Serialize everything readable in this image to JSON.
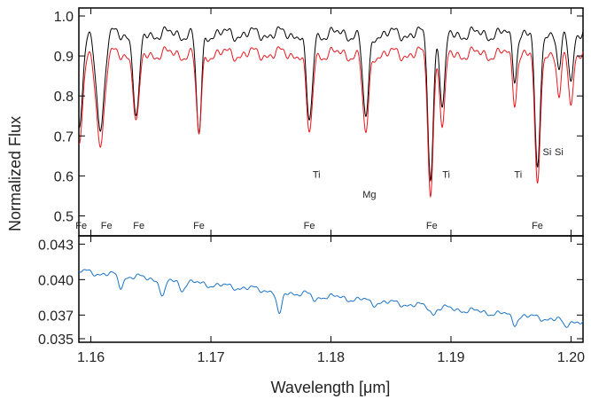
{
  "chart_data": [
    {
      "type": "line",
      "title": "",
      "xlabel": "Wavelength [μm]",
      "ylabel": "Normalized Flux",
      "xlim": [
        1.159,
        1.201
      ],
      "ylim": [
        0.45,
        1.02
      ],
      "x_ticks": [
        1.16,
        1.17,
        1.18,
        1.19,
        1.2
      ],
      "x_tick_labels": [
        "1.16",
        "1.17",
        "1.18",
        "1.19",
        "1.20"
      ],
      "y_ticks": [
        0.5,
        0.6,
        0.7,
        0.8,
        0.9,
        1.0
      ],
      "y_tick_labels": [
        "0.5",
        "0.6",
        "0.7",
        "0.8",
        "0.9",
        "1.0"
      ],
      "grid": false,
      "continuum": {
        "x": [
          1.159,
          1.201
        ],
        "black_level": 0.975,
        "red_level": 0.925,
        "noise": 0.02
      },
      "series": [
        {
          "color": "#000000",
          "lines": [
            {
              "x": 1.159,
              "min": 0.74,
              "w": 0.00045
            },
            {
              "x": 1.1608,
              "min": 0.74,
              "w": 0.00045
            },
            {
              "x": 1.1638,
              "min": 0.76,
              "w": 0.00035
            },
            {
              "x": 1.169,
              "min": 0.72,
              "w": 0.0003
            },
            {
              "x": 1.1782,
              "min": 0.75,
              "w": 0.00035
            },
            {
              "x": 1.1829,
              "min": 0.76,
              "w": 0.00035
            },
            {
              "x": 1.1883,
              "min": 0.61,
              "w": 0.0003
            },
            {
              "x": 1.1893,
              "min": 0.79,
              "w": 0.0003
            },
            {
              "x": 1.1953,
              "min": 0.87,
              "w": 0.00025
            },
            {
              "x": 1.1972,
              "min": 0.63,
              "w": 0.0003
            },
            {
              "x": 1.199,
              "min": 0.87,
              "w": 0.00025
            },
            {
              "x": 1.2,
              "min": 0.86,
              "w": 0.00025
            }
          ]
        },
        {
          "color": "#e8171e",
          "lines": [
            {
              "x": 1.159,
              "min": 0.7,
              "w": 0.00045
            },
            {
              "x": 1.1608,
              "min": 0.7,
              "w": 0.00045
            },
            {
              "x": 1.1638,
              "min": 0.75,
              "w": 0.00035
            },
            {
              "x": 1.169,
              "min": 0.72,
              "w": 0.0003
            },
            {
              "x": 1.1782,
              "min": 0.72,
              "w": 0.00035
            },
            {
              "x": 1.1829,
              "min": 0.72,
              "w": 0.00035
            },
            {
              "x": 1.1883,
              "min": 0.57,
              "w": 0.0003
            },
            {
              "x": 1.1893,
              "min": 0.74,
              "w": 0.0003
            },
            {
              "x": 1.1953,
              "min": 0.81,
              "w": 0.00025
            },
            {
              "x": 1.1972,
              "min": 0.59,
              "w": 0.0003
            },
            {
              "x": 1.199,
              "min": 0.8,
              "w": 0.00025
            },
            {
              "x": 1.2,
              "min": 0.8,
              "w": 0.00025
            }
          ]
        }
      ],
      "line_labels": [
        {
          "text": "Fe",
          "x": 1.1592,
          "y": 0.468
        },
        {
          "text": "Fe",
          "x": 1.1613,
          "y": 0.468
        },
        {
          "text": "Fe",
          "x": 1.164,
          "y": 0.468
        },
        {
          "text": "Fe",
          "x": 1.169,
          "y": 0.468
        },
        {
          "text": "Ti",
          "x": 1.1788,
          "y": 0.595
        },
        {
          "text": "Fe",
          "x": 1.1782,
          "y": 0.468
        },
        {
          "text": "Mg",
          "x": 1.1832,
          "y": 0.545
        },
        {
          "text": "Fe",
          "x": 1.1884,
          "y": 0.468
        },
        {
          "text": "Ti",
          "x": 1.1896,
          "y": 0.595
        },
        {
          "text": "Ti",
          "x": 1.1956,
          "y": 0.595
        },
        {
          "text": "Fe",
          "x": 1.1972,
          "y": 0.468
        },
        {
          "text": "Si",
          "x": 1.198,
          "y": 0.652
        },
        {
          "text": "Si",
          "x": 1.199,
          "y": 0.652
        }
      ]
    },
    {
      "type": "line",
      "title": "",
      "xlabel": "Wavelength [μm]",
      "ylabel": "",
      "xlim": [
        1.159,
        1.201
      ],
      "ylim": [
        0.0347,
        0.0437
      ],
      "x_ticks": [
        1.16,
        1.17,
        1.18,
        1.19,
        1.2
      ],
      "x_tick_labels": [
        "1.16",
        "1.17",
        "1.18",
        "1.19",
        "1.20"
      ],
      "y_ticks": [
        0.035,
        0.037,
        0.04,
        0.043
      ],
      "y_tick_labels": [
        "0.035",
        "0.037",
        "0.040",
        "0.043"
      ],
      "grid": false,
      "series": [
        {
          "color": "#1a73c8",
          "continuum": {
            "x": [
              1.159,
              1.201
            ],
            "y": [
              0.041,
              0.0367
            ],
            "noise": 0.0003
          },
          "lines": [
            {
              "x": 1.1625,
              "min": 0.0397,
              "w": 0.0003
            },
            {
              "x": 1.166,
              "min": 0.0388,
              "w": 0.0003
            },
            {
              "x": 1.1676,
              "min": 0.0395,
              "w": 0.0003
            },
            {
              "x": 1.1757,
              "min": 0.0372,
              "w": 0.0003
            },
            {
              "x": 1.1787,
              "min": 0.0385,
              "w": 0.0003
            },
            {
              "x": 1.1835,
              "min": 0.0382,
              "w": 0.0003
            },
            {
              "x": 1.1885,
              "min": 0.0374,
              "w": 0.0003
            },
            {
              "x": 1.1953,
              "min": 0.0366,
              "w": 0.0003
            },
            {
              "x": 1.1995,
              "min": 0.0363,
              "w": 0.0003
            }
          ]
        }
      ]
    }
  ]
}
